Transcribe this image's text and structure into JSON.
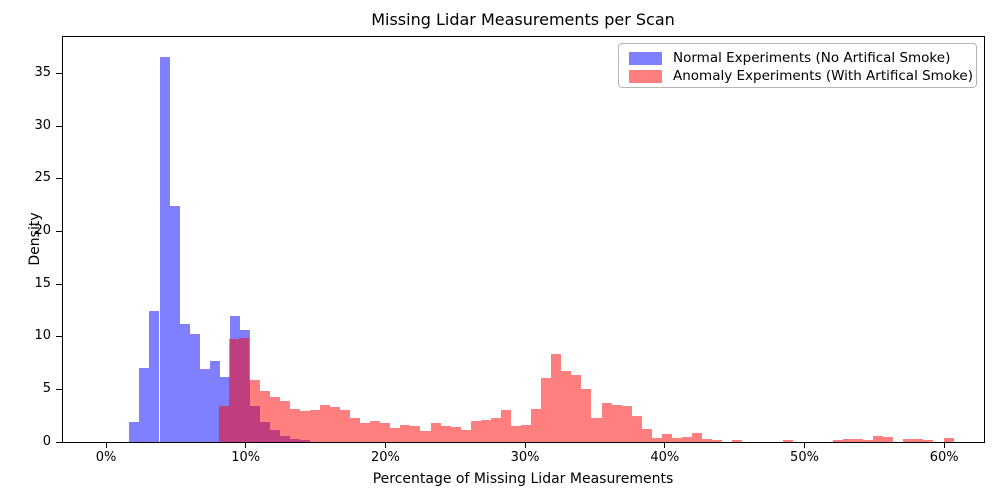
{
  "title": "Missing Lidar Measurements per Scan",
  "x_axis": {
    "label": "Percentage of Missing Lidar Measurements",
    "ticks": [
      "0%",
      "10%",
      "20%",
      "30%",
      "40%",
      "50%",
      "60%"
    ]
  },
  "y_axis": {
    "label": "Density",
    "ticks": [
      0,
      5,
      10,
      15,
      20,
      25,
      30,
      35
    ]
  },
  "legend": {
    "items": [
      {
        "label": "Normal Experiments (No Artifical Smoke)",
        "color": "#0000ff"
      },
      {
        "label": "Anomaly Experiments (With Artifical Smoke)",
        "color": "#ff0000"
      }
    ]
  },
  "chart_data": {
    "type": "bar",
    "subtype": "overlapping-histogram",
    "title": "Missing Lidar Measurements per Scan",
    "xlabel": "Percentage of Missing Lidar Measurements",
    "ylabel": "Density",
    "xlim_pct": [
      -3.1,
      63.0
    ],
    "ylim": [
      0,
      38.6
    ],
    "x_tick_values_pct": [
      0,
      10,
      20,
      30,
      40,
      50,
      60
    ],
    "y_tick_values": [
      0,
      5,
      10,
      15,
      20,
      25,
      30,
      35
    ],
    "grid": false,
    "legend_position": "upper right",
    "bin_width_pct": 0.72,
    "series": [
      {
        "name": "Normal Experiments (No Artifical Smoke)",
        "color": "#0000ff",
        "alpha": 0.5,
        "start_pct": 1.67,
        "values": [
          1.9,
          7.0,
          12.4,
          36.6,
          22.4,
          11.2,
          10.3,
          6.9,
          7.7,
          6.2,
          12.0,
          10.6,
          3.4,
          1.9,
          1.1,
          0.6,
          0.3,
          0.15
        ]
      },
      {
        "name": "Anomaly Experiments (With Artifical Smoke)",
        "color": "#ff0000",
        "alpha": 0.5,
        "start_pct": 8.11,
        "values": [
          3.4,
          9.8,
          9.9,
          5.9,
          4.8,
          4.3,
          3.9,
          3.1,
          2.9,
          3.0,
          3.5,
          3.3,
          3.0,
          2.3,
          1.8,
          2.0,
          1.8,
          1.3,
          1.6,
          1.5,
          1.0,
          1.8,
          1.5,
          1.4,
          1.1,
          2.0,
          2.1,
          2.3,
          3.0,
          1.5,
          1.6,
          3.1,
          6.1,
          8.4,
          6.7,
          6.4,
          5.0,
          2.3,
          3.7,
          3.5,
          3.4,
          2.5,
          1.2,
          0.4,
          0.8,
          0.35,
          0.5,
          0.85,
          0.25,
          0.2,
          0,
          0.2,
          0,
          0,
          0,
          0,
          0.15,
          0,
          0,
          0,
          0,
          0.2,
          0.25,
          0.25,
          0.2,
          0.55,
          0.45,
          0,
          0.25,
          0.3,
          0.2,
          0,
          0.35
        ]
      }
    ]
  }
}
